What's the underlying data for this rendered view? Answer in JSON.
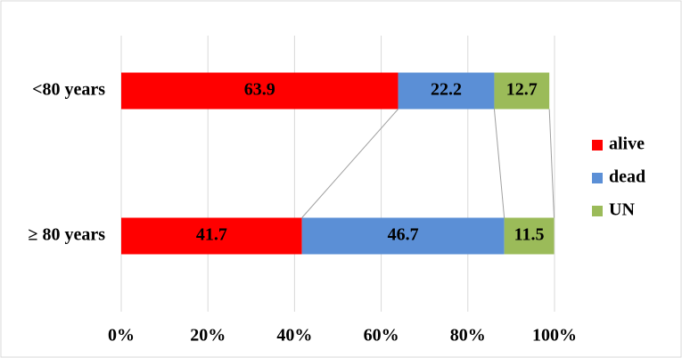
{
  "chart_data": {
    "type": "stacked-bar-horizontal",
    "categories": [
      "<80 years",
      "≥ 80 years"
    ],
    "series": [
      {
        "name": "alive",
        "color": "#ff0000",
        "values": [
          63.9,
          41.7
        ]
      },
      {
        "name": "dead",
        "color": "#5b8fd6",
        "values": [
          22.2,
          46.7
        ]
      },
      {
        "name": "UN",
        "color": "#9bbb59",
        "values": [
          12.7,
          11.5
        ]
      }
    ],
    "xlim": [
      0,
      100
    ],
    "xticks": [
      {
        "value": 0,
        "label": "0%"
      },
      {
        "value": 20,
        "label": "20%"
      },
      {
        "value": 40,
        "label": "40%"
      },
      {
        "value": 60,
        "label": "60%"
      },
      {
        "value": 80,
        "label": "80%"
      },
      {
        "value": 100,
        "label": "100%"
      }
    ],
    "grid": true,
    "legend": "right"
  }
}
